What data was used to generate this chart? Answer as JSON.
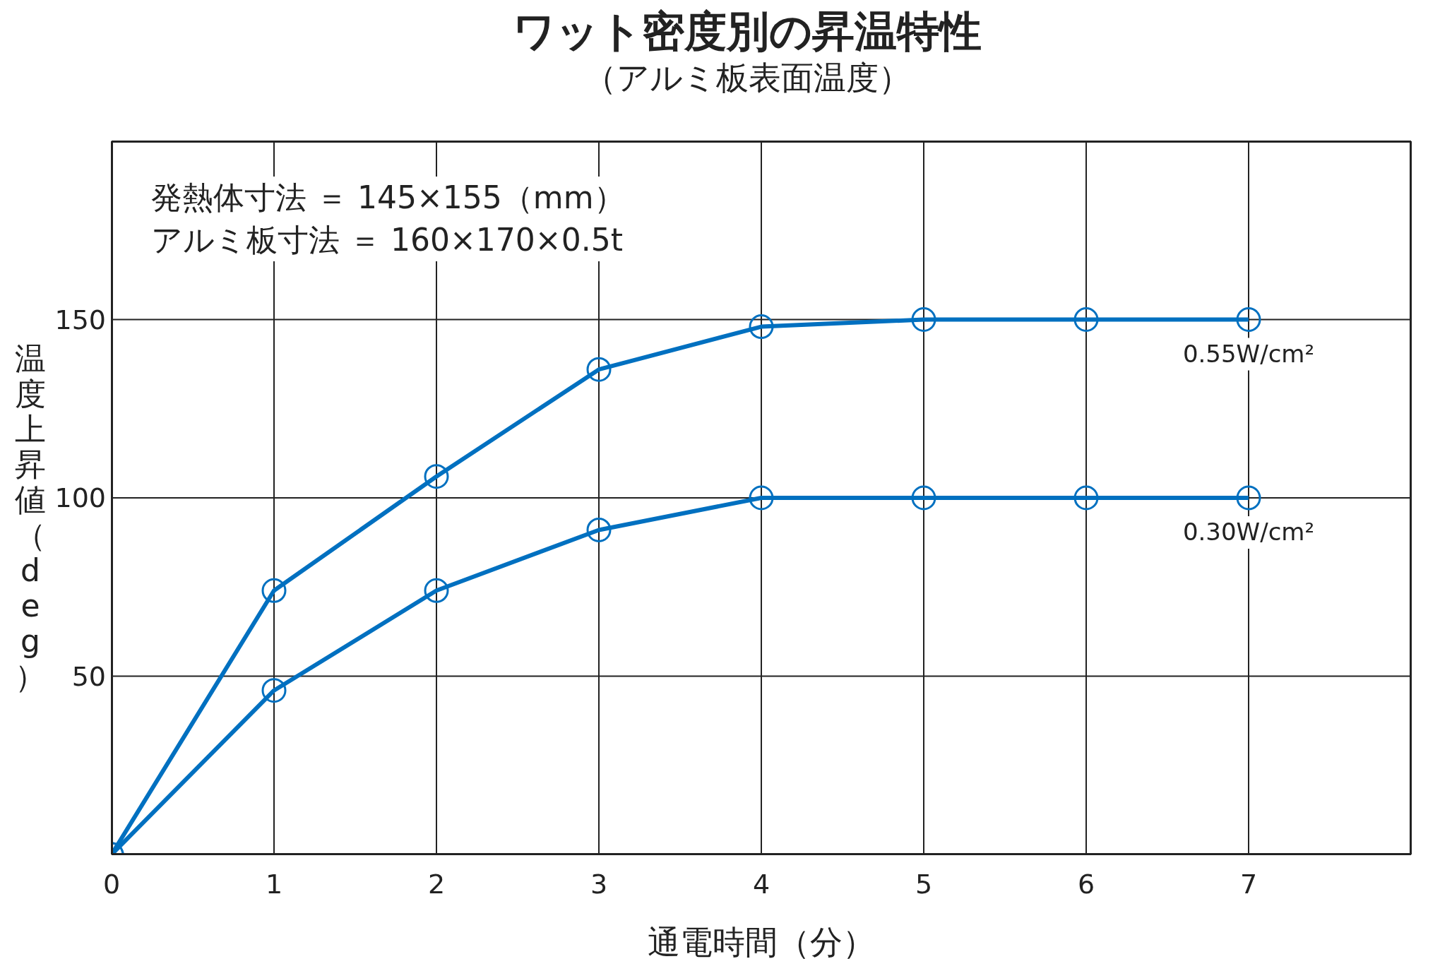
{
  "chart_data": {
    "type": "line",
    "title": "ワット密度別の昇温特性",
    "subtitle": "（アルミ板表面温度）",
    "xlabel": "通電時間（分）",
    "ylabel": "温度上昇値（deg）",
    "annotations": [
      "発熱体寸法 ＝ 145×155（mm）",
      "アルミ板寸法 ＝ 160×170×0.5t"
    ],
    "x": [
      0,
      1,
      2,
      3,
      4,
      5,
      6,
      7
    ],
    "series": [
      {
        "name": "0.55W/cm²",
        "color": "#0070c0",
        "values": [
          0,
          74,
          106,
          136,
          148,
          150,
          150,
          150
        ]
      },
      {
        "name": "0.30W/cm²",
        "color": "#0070c0",
        "values": [
          0,
          46,
          74,
          91,
          100,
          100,
          100,
          100
        ]
      }
    ],
    "xlim": [
      0,
      8
    ],
    "xticks": [
      0,
      1,
      2,
      3,
      4,
      5,
      6,
      7
    ],
    "ylim": [
      0,
      200
    ],
    "yticks": [
      50,
      100,
      150
    ],
    "grid": true,
    "marker": "circle",
    "line_style": "solid"
  }
}
